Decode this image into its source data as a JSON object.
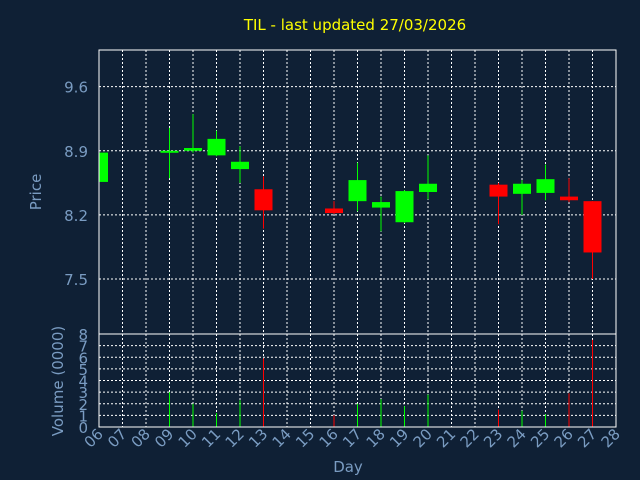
{
  "chart_data": {
    "type": "candlestick",
    "title": "TIL - last updated 27/03/2026",
    "colors": {
      "background": "#0f2035",
      "title": "#ffff00",
      "axis_text": "#7a9cc2",
      "grid": "#ffffff",
      "up": "#00ff00",
      "down": "#ff0000"
    },
    "price_panel": {
      "ylabel": "Price",
      "ylim": [
        6.9,
        10.0
      ],
      "yticks": [
        "9.6",
        "8.9",
        "8.2",
        "7.5"
      ],
      "ytick_values": [
        9.6,
        8.9,
        8.2,
        7.5
      ],
      "grid": true
    },
    "volume_panel": {
      "ylabel": "Volume (0000)",
      "ylim": [
        0,
        8
      ],
      "yticks": [
        "0",
        "1",
        "2",
        "3",
        "4",
        "5",
        "6",
        "7",
        "8"
      ],
      "grid": true
    },
    "xaxis": {
      "xlabel": "Day",
      "ticks": [
        "06",
        "07",
        "08",
        "09",
        "10",
        "11",
        "12",
        "13",
        "14",
        "15",
        "16",
        "17",
        "18",
        "19",
        "20",
        "21",
        "22",
        "23",
        "24",
        "25",
        "26",
        "27",
        "28"
      ]
    },
    "candles": [
      {
        "day": "06",
        "open": 8.56,
        "close": 8.88,
        "high": 8.9,
        "low": 8.55,
        "volume": 0
      },
      {
        "day": "09",
        "open": 8.88,
        "close": 8.9,
        "high": 9.15,
        "low": 8.6,
        "volume": 3.0
      },
      {
        "day": "10",
        "open": 8.9,
        "close": 8.93,
        "high": 9.3,
        "low": 8.88,
        "volume": 2.0
      },
      {
        "day": "11",
        "open": 8.85,
        "close": 9.03,
        "high": 9.12,
        "low": 8.84,
        "volume": 1.2
      },
      {
        "day": "12",
        "open": 8.7,
        "close": 8.78,
        "high": 8.95,
        "low": 8.55,
        "volume": 2.3
      },
      {
        "day": "13",
        "open": 8.48,
        "close": 8.25,
        "high": 8.62,
        "low": 8.05,
        "volume": 5.9
      },
      {
        "day": "16",
        "open": 8.27,
        "close": 8.22,
        "high": 8.35,
        "low": 8.21,
        "volume": 1.0
      },
      {
        "day": "17",
        "open": 8.35,
        "close": 8.58,
        "high": 8.77,
        "low": 8.24,
        "volume": 2.0
      },
      {
        "day": "18",
        "open": 8.28,
        "close": 8.34,
        "high": 8.4,
        "low": 8.02,
        "volume": 2.4
      },
      {
        "day": "19",
        "open": 8.12,
        "close": 8.46,
        "high": 8.47,
        "low": 8.11,
        "volume": 1.8
      },
      {
        "day": "20",
        "open": 8.45,
        "close": 8.54,
        "high": 8.85,
        "low": 8.37,
        "volume": 2.8
      },
      {
        "day": "23",
        "open": 8.53,
        "close": 8.4,
        "high": 8.55,
        "low": 8.1,
        "volume": 1.5
      },
      {
        "day": "24",
        "open": 8.43,
        "close": 8.54,
        "high": 8.58,
        "low": 8.2,
        "volume": 1.4
      },
      {
        "day": "25",
        "open": 8.44,
        "close": 8.59,
        "high": 8.75,
        "low": 8.36,
        "volume": 1.1
      },
      {
        "day": "26",
        "open": 8.4,
        "close": 8.36,
        "high": 8.6,
        "low": 8.34,
        "volume": 2.9
      },
      {
        "day": "27",
        "open": 8.35,
        "close": 7.79,
        "high": 8.35,
        "low": 7.5,
        "volume": 7.5
      }
    ]
  }
}
